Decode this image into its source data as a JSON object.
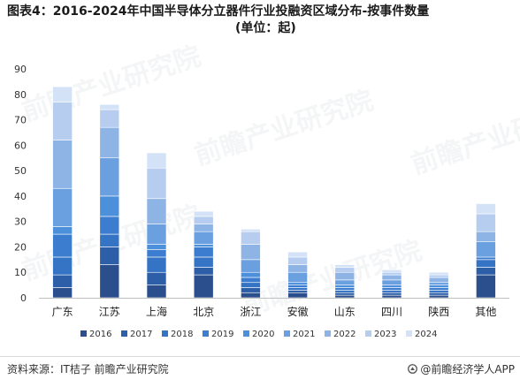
{
  "title_line1": "图表4：2016-2024年中国半导体分立器件行业投融资区域分布-按事件数量",
  "title_line2": "(单位：起)",
  "source": "资料来源：IT桔子 前瞻产业研究院",
  "brand": {
    "label": "@前瞻经济学人APP",
    "icon": "qianzhan-logo-icon"
  },
  "watermark": "前瞻产业研究院",
  "colors": {
    "series": [
      "#2a4f8c",
      "#2d5fa8",
      "#3573c4",
      "#3c7dd0",
      "#4c8fda",
      "#6a9fe0",
      "#8eb4e6",
      "#b6cdf0",
      "#d4e2f7"
    ]
  },
  "chart_data": {
    "type": "bar",
    "stacked": true,
    "title": "图表4：2016-2024年中国半导体分立器件行业投融资区域分布-按事件数量 (单位：起)",
    "xlabel": "",
    "ylabel": "",
    "ylim": [
      0,
      90
    ],
    "yticks": [
      0,
      10,
      20,
      30,
      40,
      50,
      60,
      70,
      80,
      90
    ],
    "grid": false,
    "legend_position": "bottom",
    "categories": [
      "广东",
      "江苏",
      "上海",
      "北京",
      "浙江",
      "安徽",
      "山东",
      "四川",
      "陕西",
      "其他"
    ],
    "series": [
      {
        "name": "2016",
        "values": [
          4,
          13,
          5,
          9,
          2,
          2,
          1,
          1,
          1,
          9
        ]
      },
      {
        "name": "2017",
        "values": [
          5,
          7,
          5,
          3,
          2,
          1,
          1,
          1,
          1,
          3
        ]
      },
      {
        "name": "2018",
        "values": [
          7,
          5,
          6,
          4,
          2,
          1,
          1,
          1,
          1,
          3
        ]
      },
      {
        "name": "2019",
        "values": [
          9,
          7,
          3,
          4,
          2,
          1,
          1,
          1,
          1,
          1
        ]
      },
      {
        "name": "2020",
        "values": [
          3,
          8,
          2,
          1,
          2,
          1,
          1,
          1,
          1,
          0
        ]
      },
      {
        "name": "2021",
        "values": [
          15,
          15,
          8,
          5,
          5,
          4,
          2,
          2,
          1,
          6
        ]
      },
      {
        "name": "2022",
        "values": [
          19,
          12,
          10,
          3,
          6,
          3,
          3,
          2,
          2,
          4
        ]
      },
      {
        "name": "2023",
        "values": [
          15,
          7,
          12,
          3,
          5,
          3,
          2,
          1,
          1,
          7
        ]
      },
      {
        "name": "2024",
        "values": [
          6,
          2,
          6,
          2,
          1,
          2,
          1,
          1,
          1,
          4
        ]
      }
    ]
  }
}
